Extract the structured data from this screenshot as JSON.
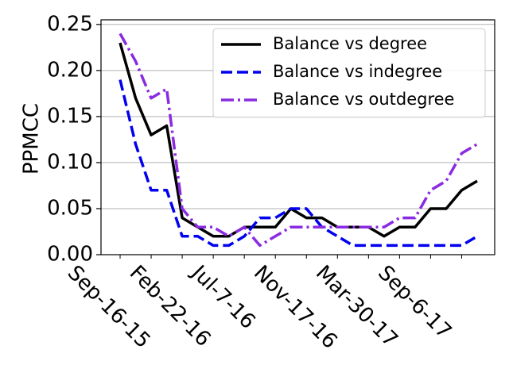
{
  "chart_data": {
    "type": "line",
    "ylabel": "PPMCC",
    "ylim": [
      0,
      0.255
    ],
    "yticks": [
      0.0,
      0.05,
      0.1,
      0.15,
      0.2,
      0.25
    ],
    "ytick_labels": [
      "0.00",
      "0.05",
      "0.10",
      "0.15",
      "0.20",
      "0.25"
    ],
    "grid": "horizontal",
    "legend_position": "top-right",
    "xtick_labels": [
      "Sep-16-15",
      "Feb-22-16",
      "Jul-7-16",
      "Nov-17-16",
      "Mar-30-17",
      "Sep-6-17"
    ],
    "xtick_index": [
      0,
      4,
      8,
      12,
      16,
      20
    ],
    "x_count": 24,
    "series": [
      {
        "name": "Balance vs degree",
        "color": "#000000",
        "style": "solid",
        "values": [
          0.23,
          0.17,
          0.13,
          0.14,
          0.04,
          0.03,
          0.02,
          0.02,
          0.03,
          0.03,
          0.03,
          0.05,
          0.04,
          0.04,
          0.03,
          0.03,
          0.03,
          0.02,
          0.03,
          0.03,
          0.05,
          0.05,
          0.07,
          0.08
        ]
      },
      {
        "name": "Balance vs indegree",
        "color": "#0000ee",
        "style": "dashed",
        "values": [
          0.19,
          0.12,
          0.07,
          0.07,
          0.02,
          0.02,
          0.01,
          0.01,
          0.02,
          0.04,
          0.04,
          0.05,
          0.05,
          0.03,
          0.02,
          0.01,
          0.01,
          0.01,
          0.01,
          0.01,
          0.01,
          0.01,
          0.01,
          0.02
        ]
      },
      {
        "name": "Balance vs outdegree",
        "color": "#8a2be2",
        "style": "dashdot",
        "values": [
          0.24,
          0.21,
          0.17,
          0.18,
          0.05,
          0.03,
          0.03,
          0.02,
          0.03,
          0.01,
          0.02,
          0.03,
          0.03,
          0.03,
          0.03,
          0.03,
          0.03,
          0.03,
          0.04,
          0.04,
          0.07,
          0.08,
          0.11,
          0.12
        ]
      }
    ]
  }
}
